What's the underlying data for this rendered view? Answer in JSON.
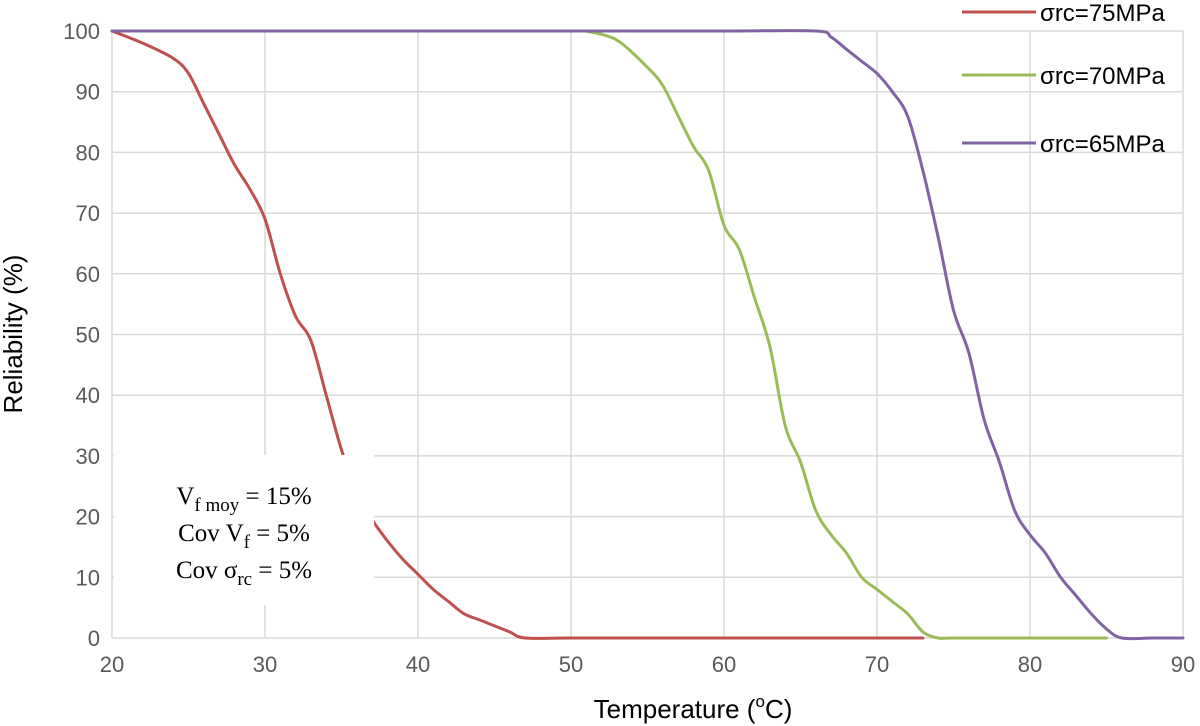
{
  "chart_data": {
    "type": "line",
    "title": "",
    "xlabel": "Temperature (",
    "xlabel_sup": "o",
    "xlabel_tail": "C)",
    "ylabel": "Reliability (%)",
    "xlim": [
      20,
      90
    ],
    "ylim": [
      0,
      100
    ],
    "xticks": [
      20,
      30,
      40,
      50,
      60,
      70,
      80,
      90
    ],
    "yticks": [
      0,
      10,
      20,
      30,
      40,
      50,
      60,
      70,
      80,
      90,
      100
    ],
    "grid": true,
    "legend_position": "top-right",
    "series": [
      {
        "name": "σrc=75MPa",
        "color": "#c0504d",
        "points": [
          [
            20,
            100
          ],
          [
            22,
            98
          ],
          [
            24,
            95.5
          ],
          [
            25,
            93
          ],
          [
            26,
            88
          ],
          [
            27,
            83
          ],
          [
            28,
            78
          ],
          [
            29,
            74
          ],
          [
            30,
            69
          ],
          [
            31,
            60
          ],
          [
            32,
            53
          ],
          [
            33,
            49
          ],
          [
            34,
            40
          ],
          [
            35,
            31
          ],
          [
            36,
            24
          ],
          [
            37,
            19.5
          ],
          [
            38,
            16
          ],
          [
            39,
            13
          ],
          [
            40,
            10.5
          ],
          [
            41,
            8
          ],
          [
            42,
            6
          ],
          [
            43,
            4
          ],
          [
            44,
            3
          ],
          [
            45,
            2
          ],
          [
            46,
            1
          ],
          [
            47,
            0
          ],
          [
            50,
            0
          ],
          [
            60,
            0
          ],
          [
            70,
            0
          ],
          [
            73,
            0
          ]
        ]
      },
      {
        "name": "σrc=70MPa",
        "color": "#9bbb59",
        "points": [
          [
            51,
            100
          ],
          [
            53,
            98.5
          ],
          [
            55,
            94
          ],
          [
            56,
            91
          ],
          [
            57,
            86
          ],
          [
            58,
            81
          ],
          [
            59,
            77
          ],
          [
            60,
            68
          ],
          [
            61,
            64
          ],
          [
            62,
            56
          ],
          [
            63,
            48
          ],
          [
            64,
            35
          ],
          [
            65,
            29
          ],
          [
            66,
            21
          ],
          [
            67,
            17
          ],
          [
            68,
            14
          ],
          [
            69,
            10
          ],
          [
            70,
            8
          ],
          [
            71,
            6
          ],
          [
            72,
            4
          ],
          [
            73,
            1
          ],
          [
            74,
            0
          ],
          [
            75,
            0
          ],
          [
            80,
            0
          ],
          [
            85,
            0
          ]
        ]
      },
      {
        "name": "σrc=65MPa",
        "color": "#8064a2",
        "points": [
          [
            20,
            100
          ],
          [
            30,
            100
          ],
          [
            40,
            100
          ],
          [
            50,
            100
          ],
          [
            60,
            100
          ],
          [
            66,
            100
          ],
          [
            67,
            99
          ],
          [
            68,
            97
          ],
          [
            69,
            95
          ],
          [
            70,
            93
          ],
          [
            71,
            90
          ],
          [
            72,
            86
          ],
          [
            73,
            77
          ],
          [
            74,
            66
          ],
          [
            75,
            54
          ],
          [
            76,
            47
          ],
          [
            77,
            36
          ],
          [
            78,
            29
          ],
          [
            79,
            21
          ],
          [
            80,
            17
          ],
          [
            81,
            14
          ],
          [
            82,
            10
          ],
          [
            83,
            7
          ],
          [
            84,
            4
          ],
          [
            85,
            1.5
          ],
          [
            86,
            0
          ],
          [
            88,
            0
          ],
          [
            90,
            0
          ]
        ]
      }
    ],
    "annotation": {
      "line1_base": "V",
      "line1_sub": "f moy",
      "line1_tail": " = 15%",
      "line2_base": "Cov V",
      "line2_sub": "f",
      "line2_tail": " = 5%",
      "line3_base": "Cov σ",
      "line3_sub": "rc",
      "line3_tail": " = 5%"
    }
  }
}
